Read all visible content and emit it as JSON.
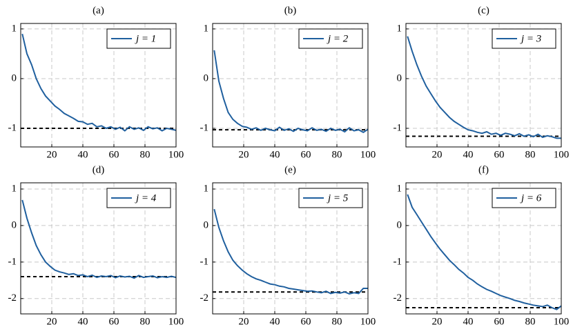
{
  "chart_data": [
    {
      "type": "line",
      "title": "(a)",
      "xlim": [
        0,
        100
      ],
      "ylim": [
        -1.375,
        1.11
      ],
      "xticks": [
        20,
        40,
        60,
        80,
        100
      ],
      "yticks": [
        -1,
        0,
        1
      ],
      "grid": true,
      "legend": "top-right",
      "hline": -1.0,
      "x": [
        1,
        4,
        7,
        10,
        13,
        16,
        19,
        22,
        25,
        28,
        31,
        34,
        37,
        40,
        43,
        46,
        49,
        52,
        55,
        58,
        61,
        64,
        67,
        70,
        73,
        76,
        79,
        82,
        85,
        88,
        91,
        94,
        97,
        100
      ],
      "series": [
        {
          "name": "j = 1",
          "color": "#1f5f9e",
          "values": [
            0.9,
            0.5,
            0.28,
            0.0,
            -0.2,
            -0.35,
            -0.45,
            -0.55,
            -0.62,
            -0.7,
            -0.75,
            -0.8,
            -0.86,
            -0.87,
            -0.92,
            -0.9,
            -0.97,
            -0.95,
            -1.0,
            -0.97,
            -1.02,
            -0.98,
            -1.05,
            -0.97,
            -1.02,
            -0.99,
            -1.04,
            -0.97,
            -1.01,
            -0.99,
            -1.05,
            -1.0,
            -1.02,
            -1.04
          ]
        }
      ]
    },
    {
      "type": "line",
      "title": "(b)",
      "xlim": [
        0,
        100
      ],
      "ylim": [
        -1.375,
        1.11
      ],
      "xticks": [
        20,
        40,
        60,
        80,
        100
      ],
      "yticks": [
        -1,
        0,
        1
      ],
      "grid": true,
      "legend": "top-right",
      "hline": -1.03,
      "x": [
        1,
        4,
        7,
        10,
        13,
        16,
        19,
        22,
        25,
        28,
        31,
        34,
        37,
        40,
        43,
        46,
        49,
        52,
        55,
        58,
        61,
        64,
        67,
        70,
        73,
        76,
        79,
        82,
        85,
        88,
        91,
        94,
        97,
        100
      ],
      "series": [
        {
          "name": "j = 2",
          "color": "#1f5f9e",
          "values": [
            0.57,
            -0.05,
            -0.4,
            -0.68,
            -0.82,
            -0.9,
            -0.96,
            -0.98,
            -1.02,
            -0.99,
            -1.04,
            -1.0,
            -1.03,
            -1.05,
            -0.98,
            -1.04,
            -1.01,
            -1.06,
            -1.0,
            -1.03,
            -1.05,
            -0.99,
            -1.04,
            -1.02,
            -1.06,
            -1.0,
            -1.04,
            -1.02,
            -1.07,
            -0.99,
            -1.05,
            -1.03,
            -1.08,
            -1.02
          ]
        }
      ]
    },
    {
      "type": "line",
      "title": "(c)",
      "xlim": [
        0,
        100
      ],
      "ylim": [
        -1.375,
        1.11
      ],
      "xticks": [
        20,
        40,
        60,
        80,
        100
      ],
      "yticks": [
        -1,
        0,
        1
      ],
      "grid": true,
      "legend": "top-right",
      "hline": -1.16,
      "x": [
        1,
        4,
        7,
        10,
        13,
        16,
        19,
        22,
        25,
        28,
        31,
        34,
        37,
        40,
        43,
        46,
        49,
        52,
        55,
        58,
        61,
        64,
        67,
        70,
        73,
        76,
        79,
        82,
        85,
        88,
        91,
        94,
        97,
        100
      ],
      "series": [
        {
          "name": "j = 3",
          "color": "#1f5f9e",
          "values": [
            0.85,
            0.55,
            0.28,
            0.05,
            -0.15,
            -0.3,
            -0.45,
            -0.58,
            -0.68,
            -0.78,
            -0.86,
            -0.92,
            -0.98,
            -1.03,
            -1.05,
            -1.08,
            -1.1,
            -1.07,
            -1.12,
            -1.1,
            -1.14,
            -1.1,
            -1.12,
            -1.15,
            -1.11,
            -1.16,
            -1.13,
            -1.17,
            -1.12,
            -1.18,
            -1.15,
            -1.17,
            -1.2,
            -1.2
          ]
        }
      ]
    },
    {
      "type": "line",
      "title": "(d)",
      "xlim": [
        0,
        100
      ],
      "ylim": [
        -2.42,
        1.17
      ],
      "xticks": [
        20,
        40,
        60,
        80,
        100
      ],
      "yticks": [
        -2,
        -1,
        0,
        1
      ],
      "grid": true,
      "legend": "top-right",
      "hline": -1.4,
      "x": [
        1,
        4,
        7,
        10,
        13,
        16,
        19,
        22,
        25,
        28,
        31,
        34,
        37,
        40,
        43,
        46,
        49,
        52,
        55,
        58,
        61,
        64,
        67,
        70,
        73,
        76,
        79,
        82,
        85,
        88,
        91,
        94,
        97,
        100
      ],
      "series": [
        {
          "name": "j = 4",
          "color": "#1f5f9e",
          "values": [
            0.7,
            0.2,
            -0.2,
            -0.55,
            -0.8,
            -1.0,
            -1.12,
            -1.22,
            -1.27,
            -1.3,
            -1.34,
            -1.32,
            -1.37,
            -1.35,
            -1.4,
            -1.36,
            -1.42,
            -1.38,
            -1.4,
            -1.37,
            -1.43,
            -1.38,
            -1.41,
            -1.39,
            -1.44,
            -1.37,
            -1.42,
            -1.4,
            -1.38,
            -1.43,
            -1.4,
            -1.42,
            -1.39,
            -1.42
          ]
        }
      ]
    },
    {
      "type": "line",
      "title": "(e)",
      "xlim": [
        0,
        100
      ],
      "ylim": [
        -2.42,
        1.17
      ],
      "xticks": [
        20,
        40,
        60,
        80,
        100
      ],
      "yticks": [
        -2,
        -1,
        0,
        1
      ],
      "grid": true,
      "legend": "top-right",
      "hline": -1.82,
      "x": [
        1,
        4,
        7,
        10,
        13,
        16,
        19,
        22,
        25,
        28,
        31,
        34,
        37,
        40,
        43,
        46,
        49,
        52,
        55,
        58,
        61,
        64,
        67,
        70,
        73,
        76,
        79,
        82,
        85,
        88,
        91,
        94,
        97,
        100
      ],
      "series": [
        {
          "name": "j = 5",
          "color": "#1f5f9e",
          "values": [
            0.45,
            -0.05,
            -0.42,
            -0.72,
            -0.95,
            -1.1,
            -1.22,
            -1.32,
            -1.4,
            -1.46,
            -1.5,
            -1.55,
            -1.6,
            -1.62,
            -1.66,
            -1.68,
            -1.72,
            -1.74,
            -1.76,
            -1.78,
            -1.8,
            -1.79,
            -1.82,
            -1.84,
            -1.8,
            -1.86,
            -1.83,
            -1.85,
            -1.82,
            -1.87,
            -1.84,
            -1.86,
            -1.72,
            -1.72
          ]
        }
      ]
    },
    {
      "type": "line",
      "title": "(f)",
      "xlim": [
        0,
        100
      ],
      "ylim": [
        -2.42,
        1.17
      ],
      "xticks": [
        20,
        40,
        60,
        80,
        100
      ],
      "yticks": [
        -2,
        -1,
        0,
        1
      ],
      "grid": true,
      "legend": "top-right",
      "hline": -2.25,
      "x": [
        1,
        4,
        7,
        10,
        13,
        16,
        19,
        22,
        25,
        28,
        31,
        34,
        37,
        40,
        43,
        46,
        49,
        52,
        55,
        58,
        61,
        64,
        67,
        70,
        73,
        76,
        79,
        82,
        85,
        88,
        91,
        94,
        97,
        100
      ],
      "series": [
        {
          "name": "j = 6",
          "color": "#1f5f9e",
          "values": [
            0.85,
            0.5,
            0.3,
            0.1,
            -0.1,
            -0.3,
            -0.48,
            -0.65,
            -0.8,
            -0.95,
            -1.07,
            -1.2,
            -1.3,
            -1.42,
            -1.5,
            -1.6,
            -1.68,
            -1.75,
            -1.8,
            -1.86,
            -1.92,
            -1.96,
            -2.0,
            -2.05,
            -2.08,
            -2.12,
            -2.15,
            -2.18,
            -2.2,
            -2.22,
            -2.18,
            -2.25,
            -2.3,
            -2.2
          ]
        }
      ]
    }
  ]
}
